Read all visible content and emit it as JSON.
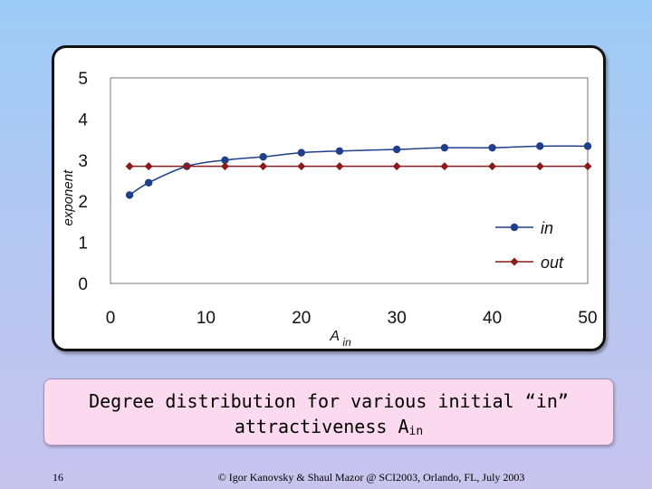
{
  "chart_data": {
    "type": "line",
    "xlabel": "A",
    "xlabel_sub": "in",
    "ylabel": "exponent",
    "xlim": [
      0,
      50
    ],
    "ylim": [
      0,
      5
    ],
    "x_ticks": [
      0,
      10,
      20,
      30,
      40,
      50
    ],
    "y_ticks": [
      0,
      1,
      2,
      3,
      4,
      5
    ],
    "grid": false,
    "legend_position": "right-bottom",
    "series": [
      {
        "name": "in",
        "color": "#1f3f8a",
        "marker": "circle",
        "x": [
          2,
          4,
          8,
          12,
          16,
          20,
          24,
          30,
          35,
          40,
          45,
          50
        ],
        "y": [
          2.15,
          2.45,
          2.85,
          3.0,
          3.08,
          3.18,
          3.22,
          3.26,
          3.3,
          3.3,
          3.34,
          3.34
        ]
      },
      {
        "name": "out",
        "color": "#8b1a1a",
        "marker": "diamond",
        "x": [
          2,
          4,
          8,
          12,
          16,
          20,
          24,
          30,
          35,
          40,
          45,
          50
        ],
        "y": [
          2.85,
          2.85,
          2.85,
          2.85,
          2.85,
          2.85,
          2.85,
          2.85,
          2.85,
          2.85,
          2.85,
          2.85
        ]
      }
    ]
  },
  "caption": {
    "line1": "Degree distribution for various initial “in”",
    "line2": "attractiveness A",
    "line2_sub": "in"
  },
  "footer": {
    "slide_number": "16",
    "credit": "© Igor Kanovsky & Shaul Mazor @ SCI2003, Orlando, FL, July 2003"
  }
}
